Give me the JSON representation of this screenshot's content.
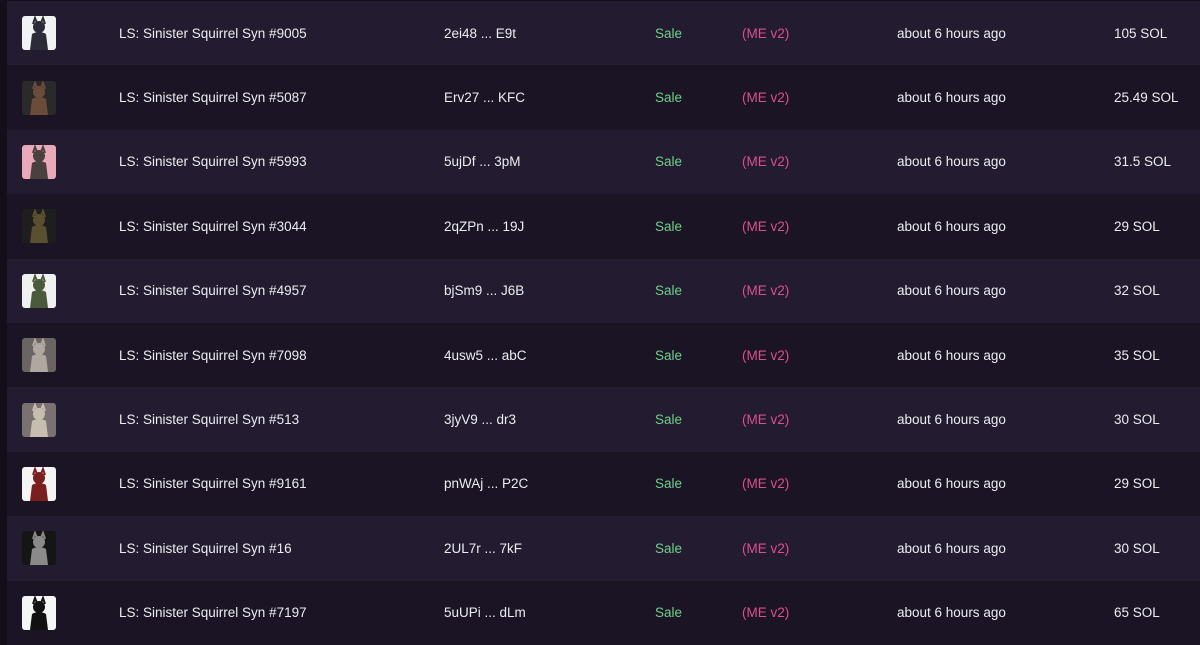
{
  "table": {
    "rows": [
      [
        "LS: Sinister Squirrel Syn #9005",
        "2ei48 ... E9t",
        "Sale",
        "(ME v2)",
        "about 6 hours ago",
        "105 SOL"
      ],
      [
        "LS: Sinister Squirrel Syn #5087",
        "Erv27 ... KFC",
        "Sale",
        "(ME v2)",
        "about 6 hours ago",
        "25.49 SOL"
      ],
      [
        "LS: Sinister Squirrel Syn #5993",
        "5ujDf ... 3pM",
        "Sale",
        "(ME v2)",
        "about 6 hours ago",
        "31.5 SOL"
      ],
      [
        "LS: Sinister Squirrel Syn #3044",
        "2qZPn ... 19J",
        "Sale",
        "(ME v2)",
        "about 6 hours ago",
        "29 SOL"
      ],
      [
        "LS: Sinister Squirrel Syn #4957",
        "bjSm9 ... J6B",
        "Sale",
        "(ME v2)",
        "about 6 hours ago",
        "32 SOL"
      ],
      [
        "LS: Sinister Squirrel Syn #7098",
        "4usw5 ... abC",
        "Sale",
        "(ME v2)",
        "about 6 hours ago",
        "35 SOL"
      ],
      [
        "LS: Sinister Squirrel Syn #513",
        "3jyV9 ... dr3",
        "Sale",
        "(ME v2)",
        "about 6 hours ago",
        "30 SOL"
      ],
      [
        "LS: Sinister Squirrel Syn #9161",
        "pnWAj ... P2C",
        "Sale",
        "(ME v2)",
        "about 6 hours ago",
        "29 SOL"
      ],
      [
        "LS: Sinister Squirrel Syn #16",
        "2UL7r ... 7kF",
        "Sale",
        "(ME v2)",
        "about 6 hours ago",
        "30 SOL"
      ],
      [
        "LS: Sinister Squirrel Syn #7197",
        "5uUPi ... dLm",
        "Sale",
        "(ME v2)",
        "about 6 hours ago",
        "65 SOL"
      ]
    ]
  }
}
